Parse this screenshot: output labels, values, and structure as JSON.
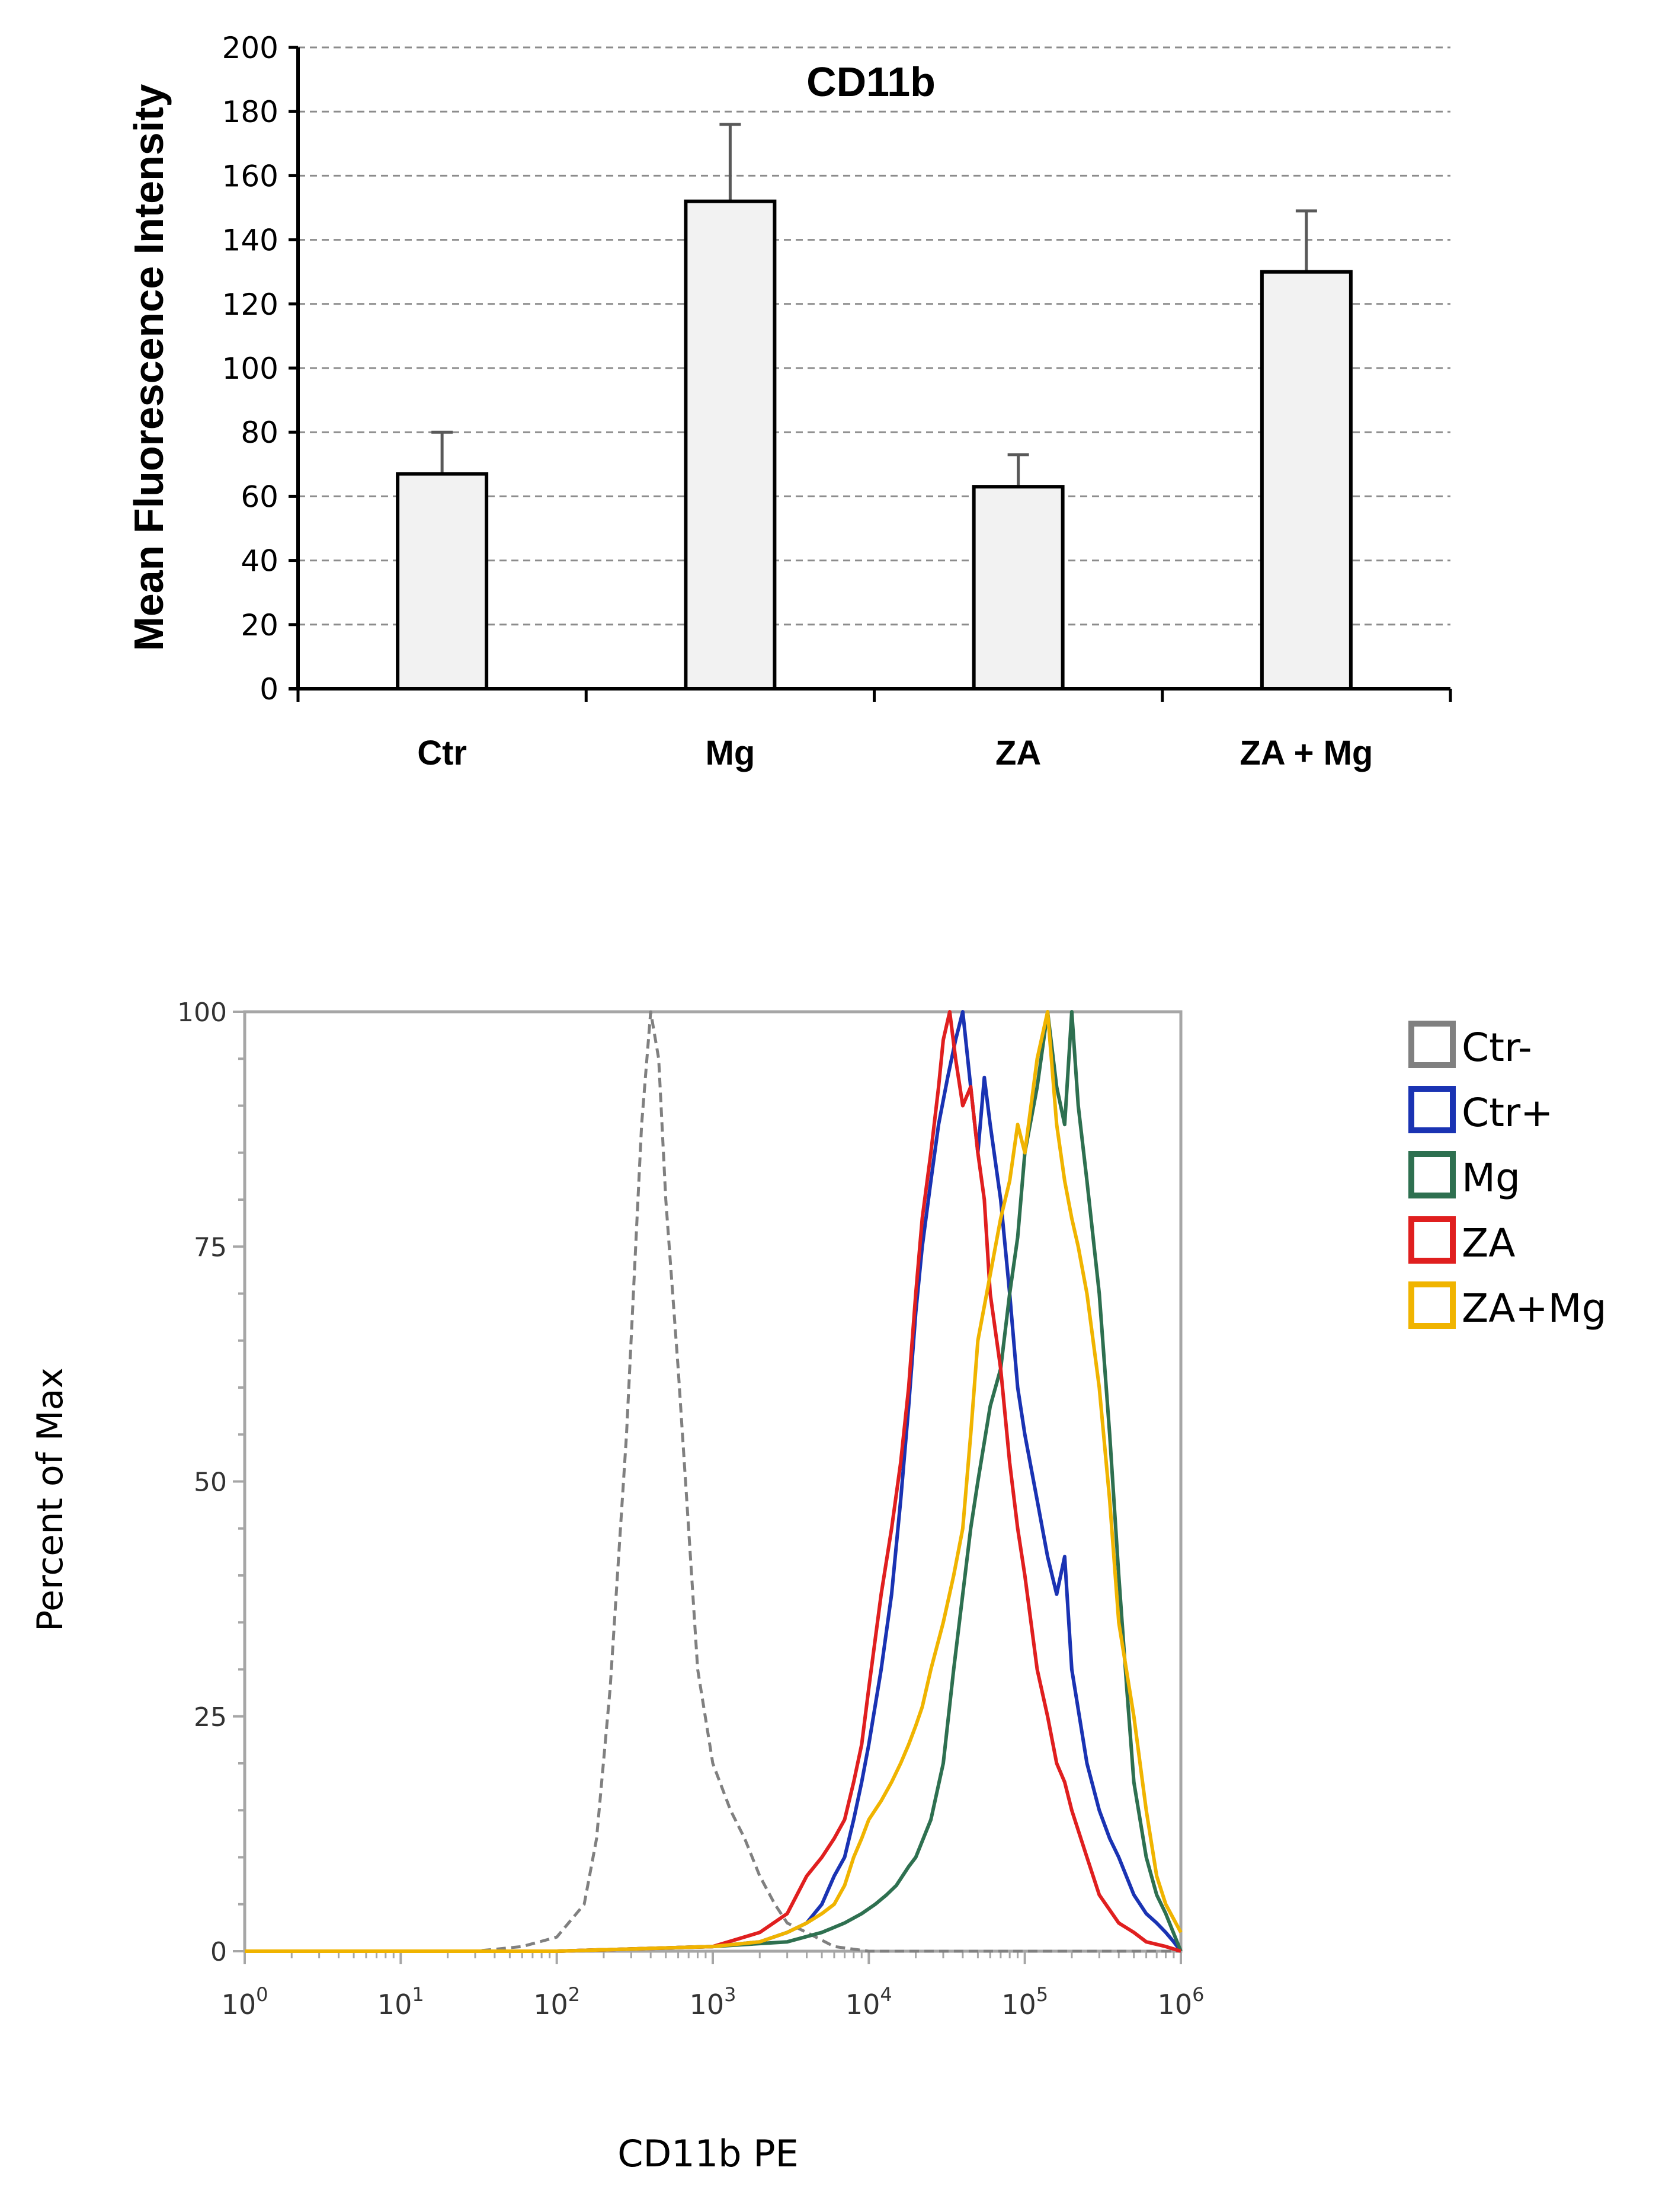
{
  "chart_data": [
    {
      "type": "bar",
      "title": "CD11b",
      "xlabel": "",
      "ylabel": "Mean Fluorescence Intensity",
      "categories": [
        "Ctr",
        "Mg",
        "ZA",
        "ZA + Mg"
      ],
      "values": [
        67,
        152,
        63,
        130
      ],
      "error_upper": [
        80,
        176,
        73,
        149
      ],
      "ylim": [
        0,
        200
      ],
      "yticks": [
        "0",
        "20",
        "40",
        "60",
        "80",
        "100",
        "120",
        "140",
        "160",
        "180",
        "200"
      ],
      "grid": true,
      "colors": {
        "bar_fill": "#f2f2f2",
        "bar_stroke": "#000000",
        "grid": "#8c8c8c",
        "error": "#595959"
      }
    },
    {
      "type": "line",
      "title": "",
      "xlabel": "CD11b PE",
      "ylabel": "Percent of Max",
      "x_scale": "log",
      "xlim": [
        1,
        1000000
      ],
      "ylim": [
        0,
        100
      ],
      "xticks": [
        {
          "base": "10",
          "exp": "0"
        },
        {
          "base": "10",
          "exp": "1"
        },
        {
          "base": "10",
          "exp": "2"
        },
        {
          "base": "10",
          "exp": "3"
        },
        {
          "base": "10",
          "exp": "4"
        },
        {
          "base": "10",
          "exp": "5"
        },
        {
          "base": "10",
          "exp": "6"
        }
      ],
      "yticks": [
        "0",
        "25",
        "50",
        "75",
        "100"
      ],
      "legend_position": "right",
      "series": [
        {
          "name": "Ctr-",
          "color": "#808080",
          "dashed": true,
          "x": [
            1,
            10,
            30,
            60,
            100,
            150,
            180,
            220,
            280,
            350,
            400,
            450,
            500,
            600,
            700,
            800,
            1000,
            1300,
            1600,
            2000,
            2500,
            3000,
            4000,
            6000,
            10000,
            100000,
            1000000
          ],
          "y": [
            0,
            0,
            0,
            0.5,
            1.5,
            5,
            12,
            28,
            55,
            88,
            100,
            95,
            80,
            62,
            45,
            30,
            20,
            15,
            12,
            8,
            5,
            3,
            2,
            0.5,
            0,
            0,
            0
          ]
        },
        {
          "name": "Ctr+",
          "color": "#1a33b3",
          "x": [
            1,
            100,
            1000,
            2000,
            3000,
            4000,
            5000,
            6000,
            7000,
            8000,
            9000,
            10000,
            12000,
            14000,
            16000,
            18000,
            20000,
            22000,
            25000,
            28000,
            32000,
            36000,
            40000,
            45000,
            50000,
            55000,
            60000,
            70000,
            80000,
            90000,
            100000,
            120000,
            140000,
            160000,
            180000,
            200000,
            250000,
            300000,
            350000,
            400000,
            500000,
            600000,
            700000,
            800000,
            900000,
            1000000
          ],
          "y": [
            0,
            0,
            0.5,
            1,
            2,
            3,
            5,
            8,
            10,
            14,
            18,
            22,
            30,
            38,
            48,
            58,
            68,
            75,
            82,
            88,
            93,
            97,
            100,
            92,
            85,
            93,
            88,
            80,
            70,
            60,
            55,
            48,
            42,
            38,
            42,
            30,
            20,
            15,
            12,
            10,
            6,
            4,
            3,
            2,
            1,
            0
          ]
        },
        {
          "name": "Mg",
          "color": "#2e7050",
          "x": [
            1,
            100,
            1000,
            3000,
            5000,
            7000,
            9000,
            11000,
            13000,
            15000,
            18000,
            20000,
            25000,
            30000,
            35000,
            40000,
            45000,
            50000,
            60000,
            70000,
            80000,
            90000,
            100000,
            120000,
            140000,
            160000,
            180000,
            200000,
            220000,
            250000,
            300000,
            350000,
            400000,
            450000,
            500000,
            600000,
            700000,
            800000,
            1000000
          ],
          "y": [
            0,
            0,
            0.5,
            1,
            2,
            3,
            4,
            5,
            6,
            7,
            9,
            10,
            14,
            20,
            30,
            38,
            45,
            50,
            58,
            62,
            70,
            76,
            85,
            92,
            100,
            92,
            88,
            100,
            90,
            82,
            70,
            55,
            40,
            28,
            18,
            10,
            6,
            4,
            0
          ]
        },
        {
          "name": "ZA",
          "color": "#e01f1f",
          "x": [
            1,
            100,
            1000,
            2000,
            3000,
            4000,
            5000,
            6000,
            7000,
            8000,
            9000,
            10000,
            12000,
            14000,
            16000,
            18000,
            20000,
            22000,
            25000,
            28000,
            30000,
            33000,
            36000,
            40000,
            45000,
            50000,
            55000,
            60000,
            70000,
            80000,
            90000,
            100000,
            120000,
            140000,
            160000,
            180000,
            200000,
            250000,
            300000,
            400000,
            500000,
            600000,
            800000,
            1000000
          ],
          "y": [
            0,
            0,
            0.5,
            2,
            4,
            8,
            10,
            12,
            14,
            18,
            22,
            28,
            38,
            45,
            52,
            60,
            70,
            78,
            85,
            92,
            97,
            100,
            95,
            90,
            92,
            85,
            80,
            70,
            62,
            52,
            45,
            40,
            30,
            25,
            20,
            18,
            15,
            10,
            6,
            3,
            2,
            1,
            0.5,
            0
          ]
        },
        {
          "name": "ZA+Mg",
          "color": "#f0b400",
          "x": [
            1,
            100,
            1000,
            2000,
            3000,
            4000,
            5000,
            6000,
            7000,
            8000,
            9000,
            10000,
            12000,
            14000,
            16000,
            18000,
            20000,
            22000,
            25000,
            30000,
            35000,
            40000,
            45000,
            50000,
            60000,
            70000,
            80000,
            90000,
            100000,
            120000,
            140000,
            160000,
            180000,
            200000,
            220000,
            250000,
            300000,
            350000,
            400000,
            500000,
            600000,
            700000,
            800000,
            1000000
          ],
          "y": [
            0,
            0,
            0.5,
            1,
            2,
            3,
            4,
            5,
            7,
            10,
            12,
            14,
            16,
            18,
            20,
            22,
            24,
            26,
            30,
            35,
            40,
            45,
            55,
            65,
            72,
            78,
            82,
            88,
            85,
            95,
            100,
            88,
            82,
            78,
            75,
            70,
            60,
            48,
            35,
            25,
            15,
            8,
            5,
            2
          ]
        }
      ]
    }
  ]
}
